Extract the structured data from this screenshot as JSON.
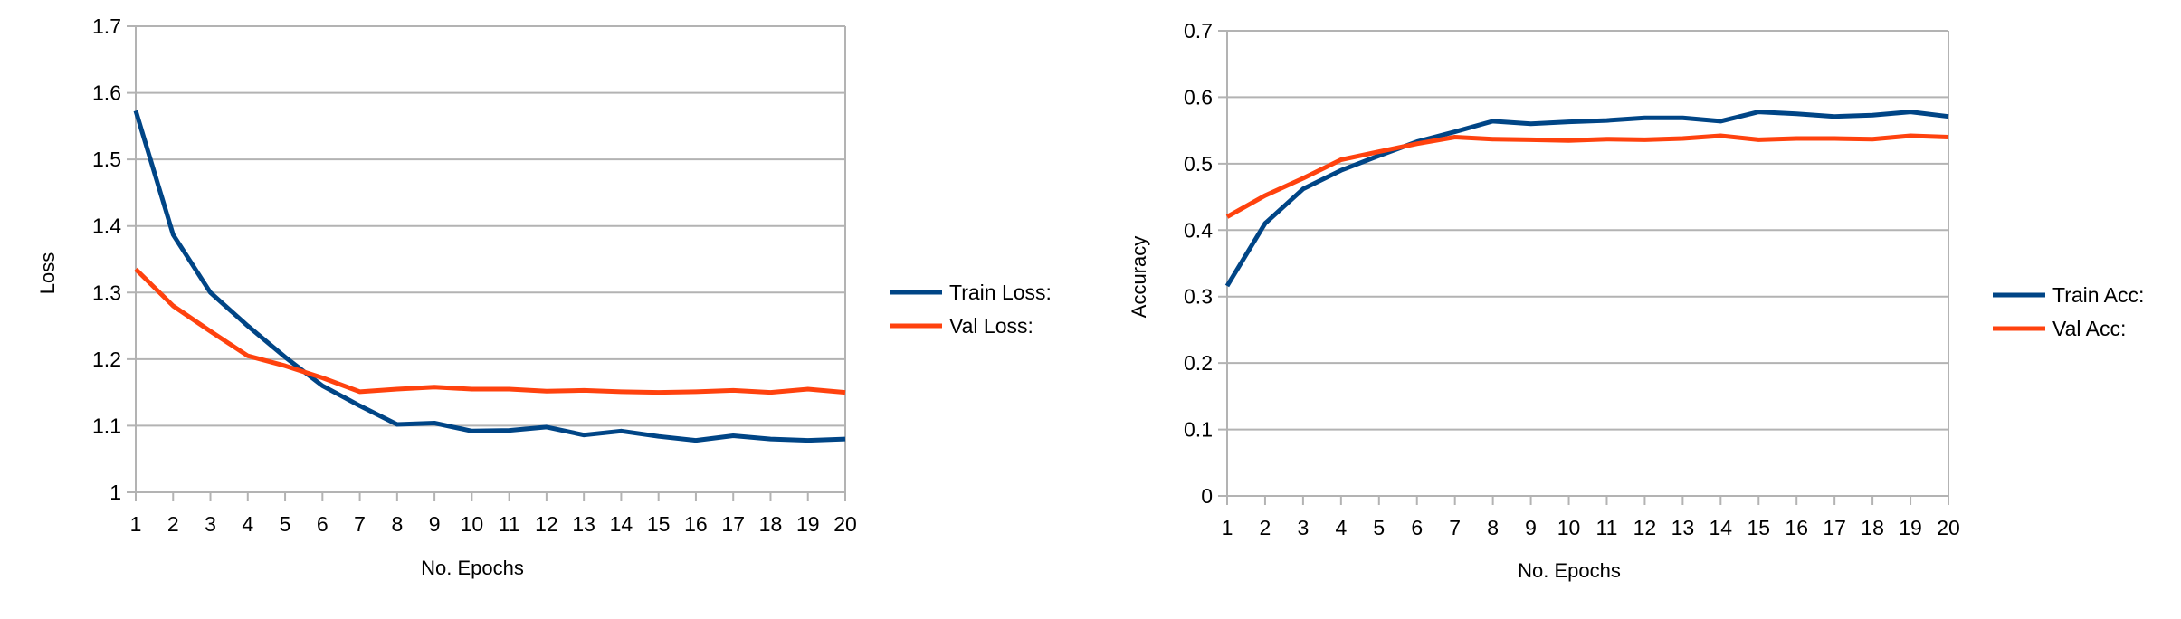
{
  "chart_data": [
    {
      "type": "line",
      "title": "",
      "xlabel": "No. Epochs",
      "ylabel": "Loss",
      "categories": [
        "1",
        "2",
        "3",
        "4",
        "5",
        "6",
        "7",
        "8",
        "9",
        "10",
        "11",
        "12",
        "13",
        "14",
        "15",
        "16",
        "17",
        "18",
        "19",
        "20"
      ],
      "ylim": [
        1,
        1.7
      ],
      "yticks": [
        1,
        1.1,
        1.2,
        1.3,
        1.4,
        1.5,
        1.6,
        1.7
      ],
      "ytick_labels": [
        "1",
        "1.1",
        "1.2",
        "1.3",
        "1.4",
        "1.5",
        "1.6",
        "1.7"
      ],
      "grid": true,
      "legend_position": "right",
      "series": [
        {
          "name": "Train Loss:",
          "color": "#004586",
          "values": [
            1.573,
            1.387,
            1.3,
            1.25,
            1.203,
            1.16,
            1.13,
            1.102,
            1.104,
            1.092,
            1.093,
            1.098,
            1.086,
            1.092,
            1.084,
            1.078,
            1.085,
            1.08,
            1.078,
            1.08
          ]
        },
        {
          "name": "Val Loss:",
          "color": "#ff420e",
          "values": [
            1.335,
            1.28,
            1.242,
            1.205,
            1.19,
            1.172,
            1.151,
            1.155,
            1.158,
            1.155,
            1.155,
            1.152,
            1.153,
            1.151,
            1.15,
            1.151,
            1.153,
            1.15,
            1.155,
            1.15
          ]
        }
      ]
    },
    {
      "type": "line",
      "title": "",
      "xlabel": "No. Epochs",
      "ylabel": "Accuracy",
      "categories": [
        "1",
        "2",
        "3",
        "4",
        "5",
        "6",
        "7",
        "8",
        "9",
        "10",
        "11",
        "12",
        "13",
        "14",
        "15",
        "16",
        "17",
        "18",
        "19",
        "20"
      ],
      "ylim": [
        0,
        0.7
      ],
      "yticks": [
        0,
        0.1,
        0.2,
        0.3,
        0.4,
        0.5,
        0.6,
        0.7
      ],
      "ytick_labels": [
        "0",
        "0.1",
        "0.2",
        "0.3",
        "0.4",
        "0.5",
        "0.6",
        "0.7"
      ],
      "grid": true,
      "legend_position": "right",
      "series": [
        {
          "name": "Train Acc:",
          "color": "#004586",
          "values": [
            0.316,
            0.41,
            0.462,
            0.49,
            0.512,
            0.533,
            0.548,
            0.564,
            0.56,
            0.563,
            0.565,
            0.569,
            0.569,
            0.564,
            0.578,
            0.575,
            0.571,
            0.573,
            0.578,
            0.571
          ]
        },
        {
          "name": "Val Acc:",
          "color": "#ff420e",
          "values": [
            0.42,
            0.452,
            0.478,
            0.506,
            0.518,
            0.53,
            0.54,
            0.537,
            0.536,
            0.535,
            0.537,
            0.536,
            0.538,
            0.542,
            0.536,
            0.538,
            0.538,
            0.537,
            0.542,
            0.54
          ]
        }
      ]
    }
  ]
}
